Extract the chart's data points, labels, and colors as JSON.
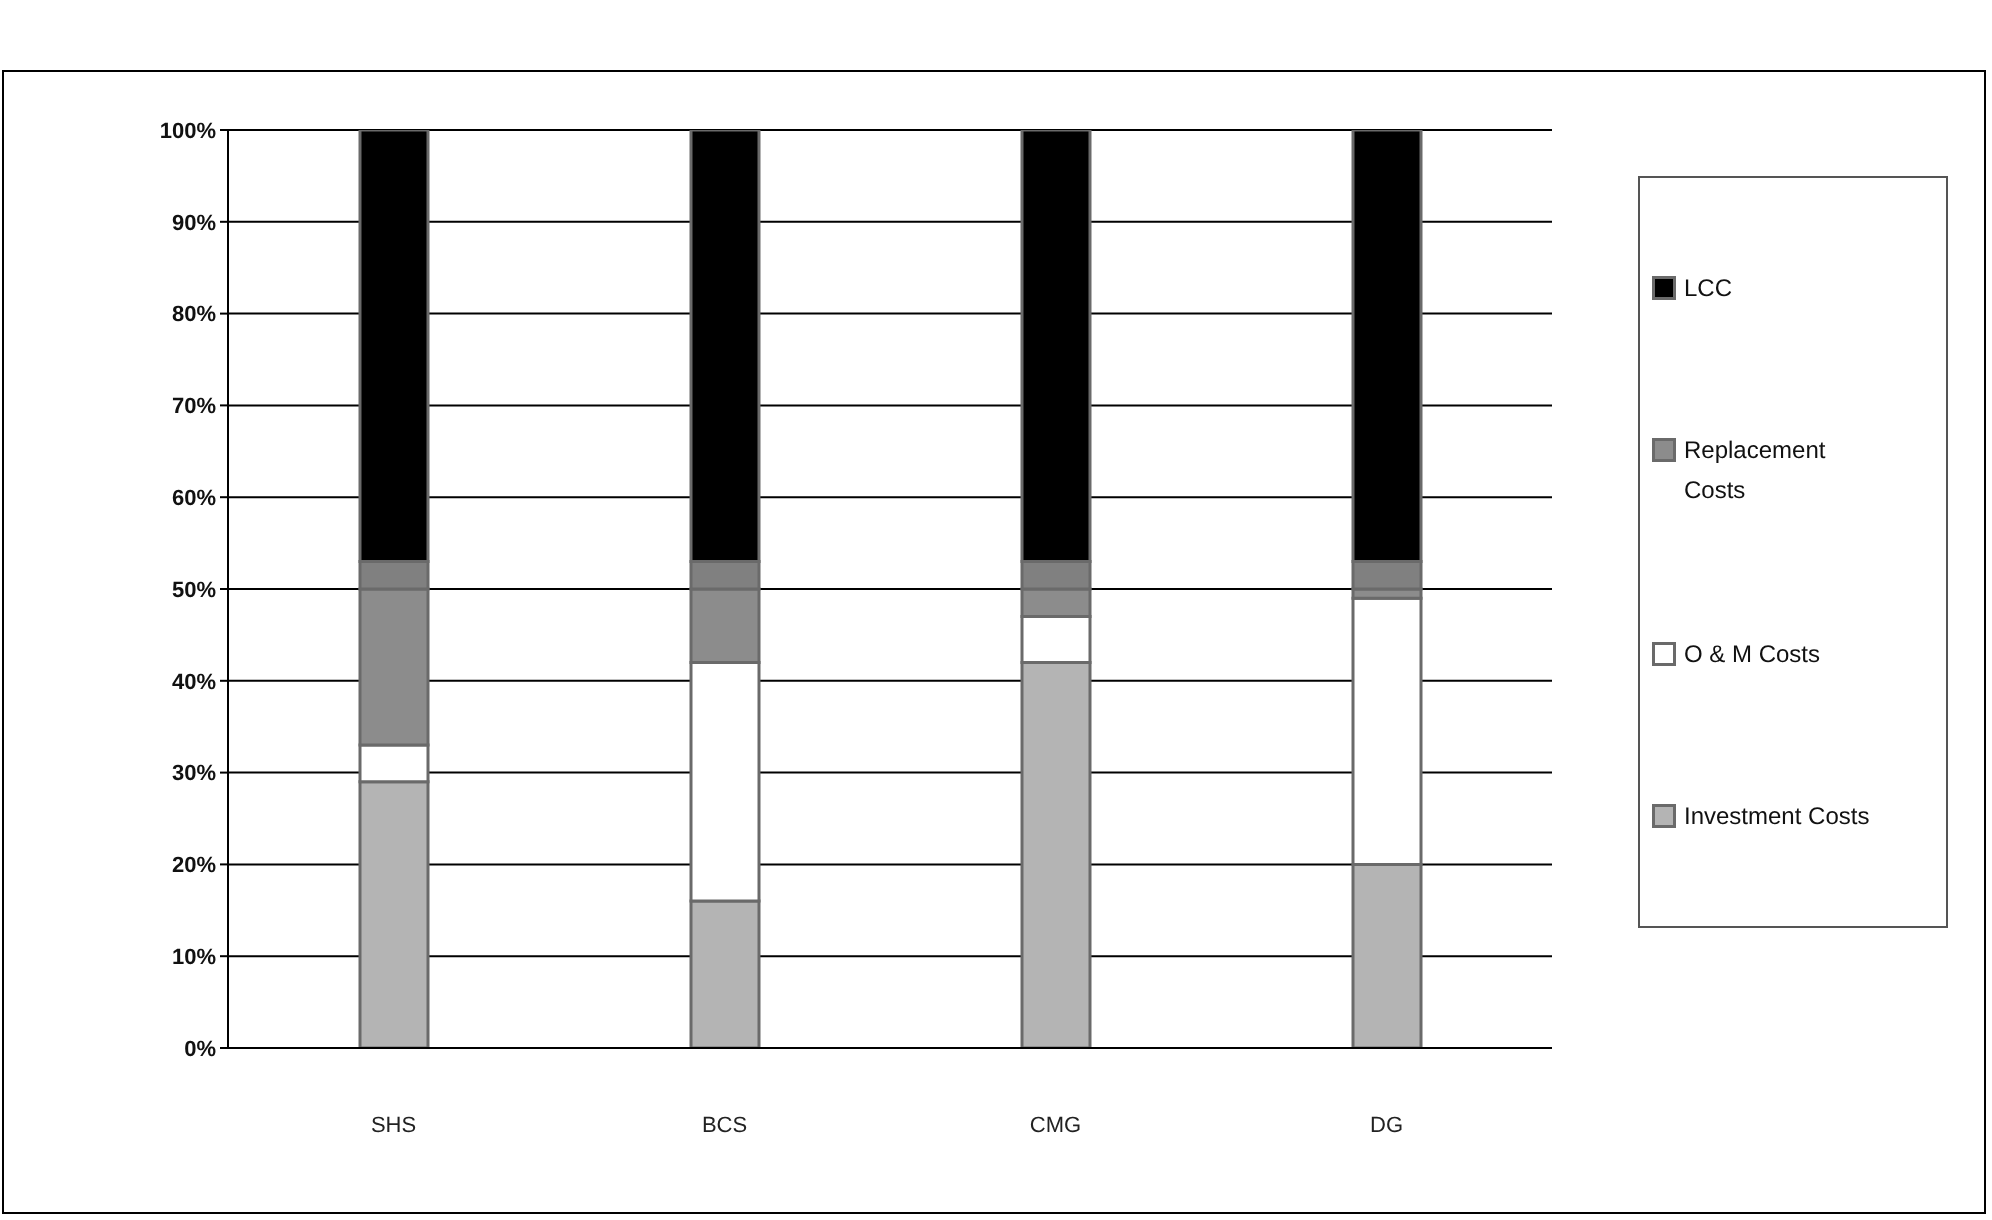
{
  "chart_data": {
    "type": "bar",
    "stacked": true,
    "categories": [
      "SHS",
      "BCS",
      "CMG",
      "DG"
    ],
    "series": [
      {
        "name": "Investment Costs",
        "color": "#b4b4b4",
        "values": [
          29,
          16,
          42,
          20
        ]
      },
      {
        "name": "O & M Costs",
        "color": "#ffffff",
        "values": [
          4,
          26,
          5,
          29
        ]
      },
      {
        "name": "Replacement Costs",
        "color": "#8c8c8c",
        "values": [
          17,
          8,
          3,
          1
        ]
      },
      {
        "color": "#808080",
        "values": [
          3,
          3,
          3,
          3
        ]
      },
      {
        "name": "LCC",
        "color": "#000000",
        "values": [
          47,
          47,
          47,
          47
        ]
      }
    ],
    "ylim": [
      0,
      100
    ],
    "yticks": [
      {
        "value": 0,
        "label": "0%"
      },
      {
        "value": 10,
        "label": "10%"
      },
      {
        "value": 20,
        "label": "20%"
      },
      {
        "value": 30,
        "label": "30%"
      },
      {
        "value": 40,
        "label": "40%"
      },
      {
        "value": 50,
        "label": "50%"
      },
      {
        "value": 60,
        "label": "60%"
      },
      {
        "value": 70,
        "label": "70%"
      },
      {
        "value": 80,
        "label": "80%"
      },
      {
        "value": 90,
        "label": "90%"
      },
      {
        "value": 100,
        "label": "100%"
      }
    ],
    "grid": "y",
    "legend": "right"
  }
}
